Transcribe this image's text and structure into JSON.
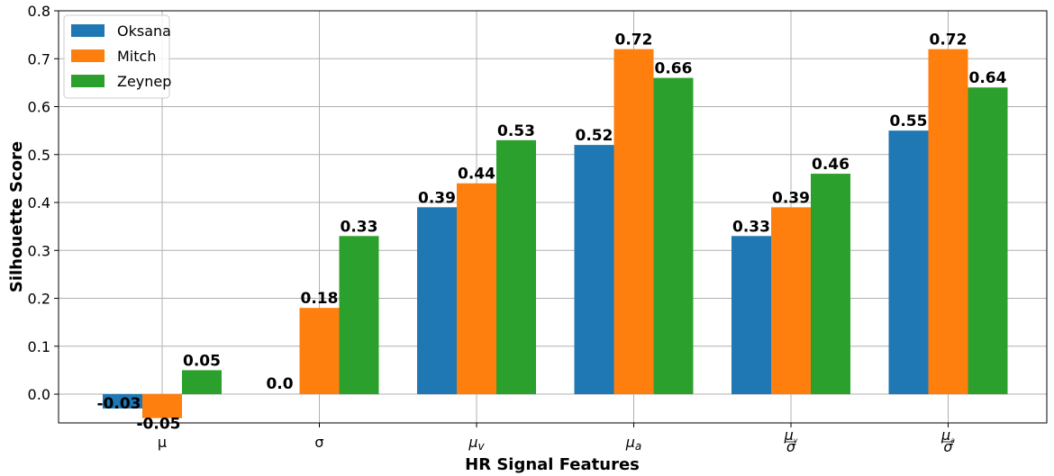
{
  "chart_data": {
    "type": "bar",
    "xlabel": "HR Signal Features",
    "ylabel": "Silhouette Score",
    "ylim": [
      -0.06,
      0.8
    ],
    "yticks": [
      "0.0",
      "0.1",
      "0.2",
      "0.3",
      "0.4",
      "0.5",
      "0.6",
      "0.7",
      "0.8"
    ],
    "ytick_values": [
      0.0,
      0.1,
      0.2,
      0.3,
      0.4,
      0.5,
      0.6,
      0.7,
      0.8
    ],
    "grid": true,
    "legend_position": "top-left",
    "categories": [
      "μ",
      "σ",
      "μ_v",
      "μ_a",
      "μ_v/σ",
      "μ_a/σ"
    ],
    "series": [
      {
        "name": "Oksana",
        "color": "#1f77b4",
        "values": [
          -0.03,
          0.0,
          0.39,
          0.52,
          0.33,
          0.55
        ],
        "labels": [
          "-0.03",
          "0.0",
          "0.39",
          "0.52",
          "0.33",
          "0.55"
        ]
      },
      {
        "name": "Mitch",
        "color": "#ff7f0e",
        "values": [
          -0.05,
          0.18,
          0.44,
          0.72,
          0.39,
          0.72
        ],
        "labels": [
          "-0.05",
          "0.18",
          "0.44",
          "0.72",
          "0.39",
          "0.72"
        ]
      },
      {
        "name": "Zeynep",
        "color": "#2ca02c",
        "values": [
          0.05,
          0.33,
          0.53,
          0.66,
          0.46,
          0.64
        ],
        "labels": [
          "0.05",
          "0.33",
          "0.53",
          "0.66",
          "0.46",
          "0.64"
        ]
      }
    ]
  }
}
